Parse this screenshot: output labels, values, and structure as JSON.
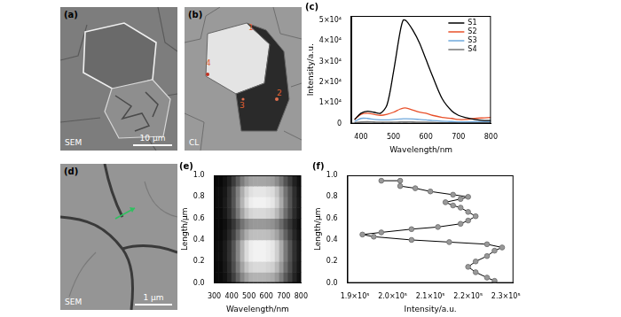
{
  "images": [
    {
      "title": "(a)",
      "label": "SEM",
      "scale_bar": "10 μm"
    },
    {
      "title": "(b)",
      "label": "CL",
      "points": [
        "1",
        "2",
        "3",
        "4"
      ]
    },
    {
      "title": "(d)",
      "label": "SEM",
      "scale_bar": "1 μm"
    }
  ],
  "chart_data": [
    {
      "type": "line",
      "title": "(c)",
      "x_label": "Wavelength/nm",
      "y_label": "Intensity/a.u.",
      "x": [
        380,
        400,
        420,
        440,
        460,
        480,
        500,
        520,
        530,
        540,
        560,
        580,
        600,
        620,
        650,
        680,
        700,
        720,
        750,
        780,
        800
      ],
      "series": [
        {
          "name": "S1",
          "color": "#000000",
          "values": [
            2000,
            5000,
            6000,
            5500,
            5000,
            9000,
            25000,
            44000,
            50000,
            49500,
            45000,
            39000,
            31000,
            23000,
            12000,
            6000,
            4000,
            3000,
            2000,
            1500,
            1500
          ]
        },
        {
          "name": "S2",
          "color": "#e8502a",
          "values": [
            2000,
            4500,
            5000,
            4500,
            4000,
            4500,
            5500,
            7000,
            7500,
            7500,
            6500,
            5500,
            5000,
            4000,
            3000,
            2500,
            2000,
            2000,
            2500,
            2800,
            3000
          ]
        },
        {
          "name": "S3",
          "color": "#6fa8dc",
          "values": [
            1000,
            2500,
            2500,
            2000,
            1800,
            1800,
            2000,
            2200,
            2300,
            2300,
            2200,
            2000,
            1800,
            1500,
            1200,
            1000,
            800,
            800,
            900,
            1000,
            1000
          ]
        },
        {
          "name": "S4",
          "color": "#777777",
          "values": [
            500,
            800,
            900,
            800,
            700,
            700,
            700,
            800,
            800,
            800,
            800,
            700,
            700,
            600,
            500,
            400,
            400,
            400,
            400,
            400,
            400
          ]
        }
      ],
      "xlim": [
        370,
        800
      ],
      "xticks": [
        400,
        500,
        600,
        700,
        800
      ],
      "ylim": [
        0,
        52000
      ],
      "yticks": [
        0,
        {
          "value": 10000,
          "label": "1×10⁴"
        },
        {
          "value": 20000,
          "label": "2×10⁴"
        },
        {
          "value": 30000,
          "label": "3×10⁴"
        },
        {
          "value": 40000,
          "label": "4×10⁴"
        },
        {
          "value": 50000,
          "label": "5×10⁴"
        }
      ],
      "grid": false,
      "legend": "upper right",
      "line_style": "solid"
    },
    {
      "type": "heatmap",
      "title": "(e)",
      "x_label": "Wavelength/nm",
      "y_label": "Length/μm",
      "x_bins": [
        300,
        325,
        350,
        375,
        400,
        425,
        450,
        475,
        500,
        525,
        550,
        575,
        600,
        625,
        650,
        675,
        700,
        725,
        750,
        775,
        800
      ],
      "y_bins": [
        0,
        0.1,
        0.2,
        0.3,
        0.4,
        0.5,
        0.6,
        0.7,
        0.8,
        0.9,
        1
      ],
      "cells": [
        [
          0.04,
          0.04,
          0.07,
          0.14,
          0.25,
          0.39,
          0.53,
          0.63,
          0.69,
          0.7,
          0.7,
          0.7,
          0.69,
          0.67,
          0.6,
          0.49,
          0.35,
          0.25,
          0.14,
          0.07
        ],
        [
          0.04,
          0.04,
          0.09,
          0.17,
          0.3,
          0.47,
          0.64,
          0.77,
          0.83,
          0.85,
          0.85,
          0.85,
          0.83,
          0.81,
          0.72,
          0.6,
          0.43,
          0.3,
          0.17,
          0.09
        ],
        [
          0.05,
          0.05,
          0.1,
          0.19,
          0.33,
          0.52,
          0.71,
          0.86,
          0.93,
          0.95,
          0.95,
          0.95,
          0.93,
          0.9,
          0.81,
          0.67,
          0.48,
          0.33,
          0.19,
          0.1
        ],
        [
          0.05,
          0.05,
          0.1,
          0.19,
          0.33,
          0.52,
          0.71,
          0.86,
          0.93,
          0.95,
          0.95,
          0.95,
          0.93,
          0.9,
          0.81,
          0.67,
          0.48,
          0.33,
          0.19,
          0.1
        ],
        [
          0.04,
          0.04,
          0.08,
          0.15,
          0.26,
          0.41,
          0.56,
          0.68,
          0.74,
          0.75,
          0.75,
          0.75,
          0.74,
          0.71,
          0.64,
          0.53,
          0.38,
          0.26,
          0.15,
          0.08
        ],
        [
          0.03,
          0.03,
          0.06,
          0.12,
          0.21,
          0.33,
          0.45,
          0.54,
          0.59,
          0.6,
          0.6,
          0.6,
          0.59,
          0.57,
          0.51,
          0.42,
          0.3,
          0.21,
          0.12,
          0.06
        ],
        [
          0.04,
          0.04,
          0.09,
          0.17,
          0.3,
          0.47,
          0.64,
          0.77,
          0.83,
          0.85,
          0.85,
          0.85,
          0.83,
          0.81,
          0.72,
          0.6,
          0.43,
          0.3,
          0.17,
          0.09
        ],
        [
          0.05,
          0.05,
          0.1,
          0.19,
          0.33,
          0.52,
          0.71,
          0.86,
          0.93,
          0.95,
          0.95,
          0.95,
          0.93,
          0.9,
          0.81,
          0.67,
          0.48,
          0.33,
          0.19,
          0.1
        ],
        [
          0.05,
          0.05,
          0.09,
          0.18,
          0.32,
          0.5,
          0.68,
          0.81,
          0.88,
          0.9,
          0.9,
          0.9,
          0.88,
          0.86,
          0.77,
          0.63,
          0.45,
          0.32,
          0.18,
          0.09
        ],
        [
          0.03,
          0.03,
          0.07,
          0.13,
          0.23,
          0.36,
          0.49,
          0.59,
          0.64,
          0.65,
          0.65,
          0.65,
          0.64,
          0.62,
          0.55,
          0.46,
          0.33,
          0.23,
          0.13,
          0.07
        ]
      ],
      "xlim": [
        300,
        800
      ],
      "xticks": [
        300,
        400,
        500,
        600,
        700,
        800
      ],
      "ylim": [
        0,
        1
      ],
      "yticks": [
        {
          "value": 0,
          "label": "0.0"
        },
        0.2,
        0.4,
        0.6,
        0.8,
        {
          "value": 1,
          "label": "1.0"
        }
      ],
      "grid": false
    },
    {
      "type": "line",
      "title": "(f)",
      "x_label": "Intensity/a.u.",
      "y_label": "Length/μm",
      "x": [
        227000,
        225000,
        222000,
        220000,
        222000,
        225000,
        227000,
        229000,
        225000,
        215000,
        205000,
        195000,
        192000,
        197000,
        205000,
        212000,
        218000,
        220000,
        222000,
        220000,
        218000,
        216000,
        214000,
        218000,
        220000,
        216000,
        210000,
        206000,
        202000,
        202000,
        197000
      ],
      "values": [
        0.02,
        0.05,
        0.1,
        0.15,
        0.2,
        0.25,
        0.3,
        0.33,
        0.36,
        0.38,
        0.4,
        0.43,
        0.45,
        0.47,
        0.5,
        0.52,
        0.55,
        0.58,
        0.62,
        0.66,
        0.7,
        0.72,
        0.75,
        0.78,
        0.8,
        0.82,
        0.85,
        0.88,
        0.9,
        0.95,
        0.95
      ],
      "color": "#999999",
      "marker": "circle",
      "line_style": "solid",
      "xlim": [
        188000,
        232000
      ],
      "xticks": [
        {
          "value": 190000,
          "label": "1.9×10⁵"
        },
        {
          "value": 200000,
          "label": "2.0×10⁵"
        },
        {
          "value": 210000,
          "label": "2.1×10⁵"
        },
        {
          "value": 220000,
          "label": "2.2×10⁵"
        },
        {
          "value": 230000,
          "label": "2.3×10⁵"
        }
      ],
      "ylim": [
        0,
        1
      ],
      "yticks": [
        {
          "value": 0,
          "label": "0.0"
        },
        0.2,
        0.4,
        0.6,
        0.8,
        {
          "value": 1,
          "label": "1.0"
        }
      ],
      "grid": false
    }
  ]
}
